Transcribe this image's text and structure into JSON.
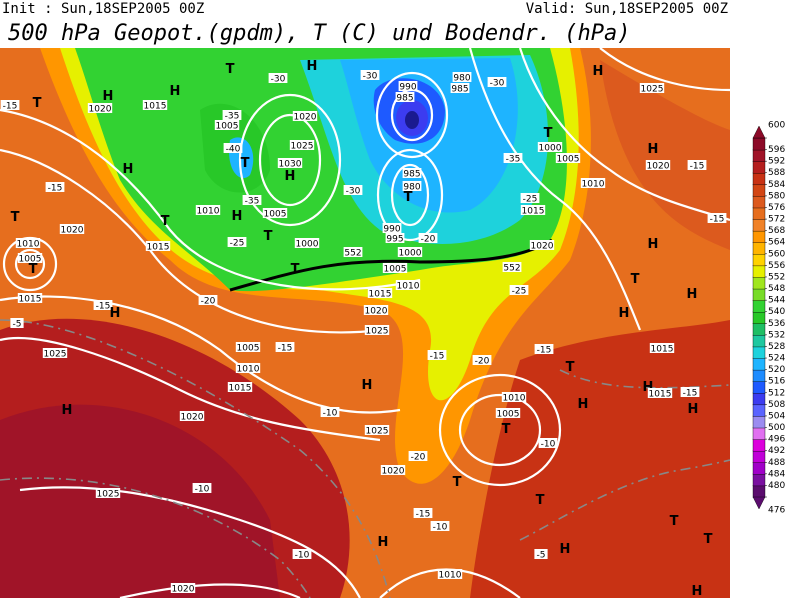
{
  "header": {
    "init": "Init : Sun,18SEP2005 00Z",
    "valid": "Valid: Sun,18SEP2005 00Z",
    "title": "500 hPa Geopot.(gpdm), T (C) und Bodendr. (hPa)"
  },
  "colorbar": {
    "ticks": [
      476,
      480,
      484,
      488,
      492,
      496,
      500,
      504,
      508,
      512,
      516,
      520,
      524,
      528,
      532,
      536,
      540,
      544,
      548,
      552,
      556,
      560,
      564,
      568,
      572,
      576,
      580,
      584,
      588,
      592,
      596,
      600
    ],
    "colors": [
      "#5b0c6e",
      "#7a0fa0",
      "#a000c8",
      "#c000d8",
      "#dc00dc",
      "#e070f0",
      "#9b8cf0",
      "#5a64ff",
      "#3c3cf0",
      "#1e5aff",
      "#1e8cff",
      "#1eb4ff",
      "#1ed2dc",
      "#1ec8a0",
      "#1ebe64",
      "#28c828",
      "#32d232",
      "#78dc28",
      "#a0e61e",
      "#e6f000",
      "#ffd200",
      "#ffb400",
      "#ff9600",
      "#f08228",
      "#e66e1e",
      "#dc5a1e",
      "#d24614",
      "#c83214",
      "#b41e1e",
      "#a01428",
      "#8c0a28"
    ]
  },
  "map": {
    "labels": [
      "H",
      "T",
      "-15",
      "1020",
      "1015",
      "H",
      "T",
      "H",
      "-30",
      "-30",
      "990",
      "985",
      "980",
      "985",
      "-30",
      "1025",
      "H",
      "-35",
      "1005",
      "1020",
      "-40",
      "T",
      "1025",
      "1030",
      "H",
      "T",
      "1000",
      "1005",
      "-35",
      "H",
      "-15",
      "H",
      "1020",
      "-15",
      "1010",
      "985",
      "980",
      "T",
      "-30",
      "-35",
      "1005",
      "1010",
      "H",
      "T",
      "-15",
      "1015",
      "-25",
      "T",
      "T",
      "1020",
      "-25",
      "990",
      "995",
      "-20",
      "1000",
      "1010",
      "1005",
      "T",
      "1015",
      "1020",
      "H",
      "552",
      "1000",
      "T",
      "1005",
      "552",
      "1010",
      "1015",
      "-20",
      "T",
      "H",
      "1015",
      "-15",
      "H",
      "1020",
      "-25",
      "H",
      "-5",
      "1025",
      "-15",
      "-20",
      "-15",
      "1005",
      "-15",
      "1025",
      "1015",
      "1010",
      "T",
      "H",
      "H",
      "1015",
      "-15",
      "H",
      "H",
      "1015",
      "H",
      "1010",
      "1005",
      "-10",
      "1020",
      "1025",
      "T",
      "-10",
      "-20",
      "1020",
      "T",
      "T",
      "1025",
      "-10",
      "-15",
      "-10",
      "H",
      "H",
      "T",
      "T",
      "-10",
      "-5",
      "1010",
      "1020",
      "H"
    ]
  }
}
